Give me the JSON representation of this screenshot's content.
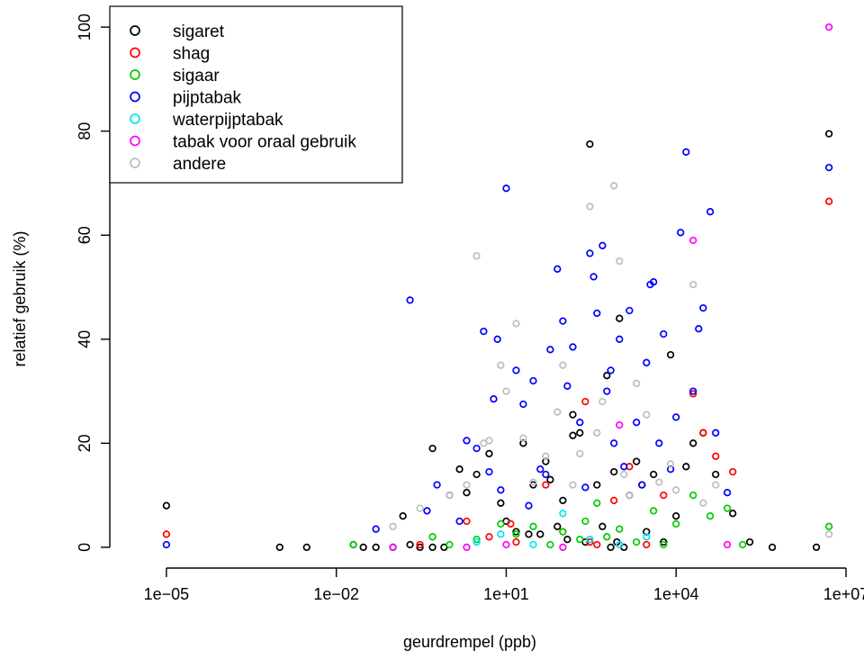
{
  "chart_data": {
    "type": "scatter",
    "title": "",
    "xlabel": "geurdrempel (ppb)",
    "ylabel": "relatief gebruik (%)",
    "x_scale": "log10",
    "xlim": [
      1e-06,
      10000000.0
    ],
    "ylim": [
      -4,
      104
    ],
    "x_ticks": [
      1e-05,
      0.01,
      10,
      10000,
      10000000
    ],
    "x_tick_labels": [
      "1e−05",
      "1e−02",
      "1e+01",
      "1e+04",
      "1e+07"
    ],
    "y_ticks": [
      0,
      20,
      40,
      60,
      80,
      100
    ],
    "y_tick_labels": [
      "0",
      "20",
      "40",
      "60",
      "80",
      "100"
    ],
    "grid": false,
    "legend_position": "top-left",
    "series": [
      {
        "name": "sigaret",
        "color": "#000000",
        "x": [
          1e-05,
          0.001,
          0.003,
          0.02,
          0.03,
          0.05,
          0.1,
          0.2,
          0.15,
          0.3,
          0.5,
          0.5,
          0.8,
          1.5,
          2,
          3,
          5,
          8,
          10,
          15,
          20,
          25,
          30,
          40,
          50,
          60,
          80,
          100,
          120,
          150,
          200,
          300,
          400,
          500,
          600,
          800,
          1000,
          1500,
          2000,
          2500,
          3000,
          4000,
          6000,
          8000,
          10000,
          15000,
          20000,
          30000,
          50000,
          100000,
          200000,
          500000,
          5000000,
          3000000,
          150,
          250,
          700,
          900,
          1200
        ],
        "y": [
          8,
          0,
          0,
          0.5,
          0,
          0,
          0,
          0.5,
          6,
          0,
          19,
          0,
          0,
          15,
          10.5,
          14,
          18,
          8.5,
          5,
          3,
          20,
          2.5,
          12,
          2.5,
          16.5,
          13,
          4,
          9,
          1.5,
          21.5,
          22,
          77.5,
          12,
          4,
          33,
          14.5,
          44,
          10,
          16.5,
          12,
          3,
          14,
          1,
          37,
          6,
          15.5,
          20,
          22,
          14,
          6.5,
          1,
          0,
          79.5,
          0,
          25.5,
          1,
          0,
          1,
          0
        ]
      },
      {
        "name": "shag",
        "color": "#ff0000",
        "x": [
          1e-05,
          0.3,
          2,
          5,
          12,
          50,
          100,
          250,
          300,
          800,
          1500,
          3000,
          6000,
          20000,
          30000,
          50000,
          100000,
          5000000,
          15,
          400
        ],
        "y": [
          2.5,
          0.5,
          5,
          2,
          4.5,
          12,
          3,
          28,
          1,
          9,
          15.5,
          0.5,
          10,
          29.5,
          22,
          17.5,
          14.5,
          66.5,
          1,
          0.5
        ]
      },
      {
        "name": "sigaar",
        "color": "#00cc00",
        "x": [
          0.02,
          0.5,
          1,
          3,
          8,
          15,
          30,
          60,
          100,
          200,
          400,
          600,
          1000,
          2000,
          4000,
          6000,
          10000,
          20000,
          40000,
          80000,
          150000,
          5000000,
          0.1,
          250
        ],
        "y": [
          0.5,
          2,
          0.5,
          1.5,
          4.5,
          2.5,
          4,
          0.5,
          3,
          1.5,
          8.5,
          2,
          3.5,
          1,
          7,
          0.5,
          4.5,
          10,
          6,
          7.5,
          0.5,
          4,
          0,
          5
        ]
      },
      {
        "name": "pijptabak",
        "color": "#0000ff",
        "x": [
          1e-05,
          0.05,
          0.2,
          0.4,
          0.6,
          1,
          1.5,
          2,
          3,
          4,
          5,
          6,
          7,
          8,
          10,
          15,
          20,
          25,
          30,
          40,
          50,
          60,
          80,
          100,
          120,
          150,
          200,
          250,
          300,
          350,
          400,
          500,
          600,
          700,
          800,
          1000,
          1200,
          1500,
          2000,
          2500,
          3000,
          3500,
          4000,
          5000,
          6000,
          8000,
          10000,
          12000,
          15000,
          20000,
          25000,
          30000,
          40000,
          50000,
          80000,
          5000000
        ],
        "y": [
          0.5,
          3.5,
          47.5,
          7,
          12,
          10,
          5,
          20.5,
          19,
          41.5,
          14.5,
          28.5,
          40,
          11,
          69,
          34,
          27.5,
          8,
          32,
          15,
          14,
          38,
          53.5,
          43.5,
          31,
          38.5,
          24,
          11.5,
          56.5,
          52,
          45,
          58,
          30,
          34,
          20,
          40,
          15.5,
          45.5,
          24,
          12,
          35.5,
          50.5,
          51,
          20,
          41,
          15,
          25,
          60.5,
          76,
          30,
          42,
          46,
          64.5,
          22,
          10.5,
          73
        ]
      },
      {
        "name": "waterpijptabak",
        "color": "#00e5ee",
        "x": [
          3,
          8,
          30,
          100,
          300,
          1000,
          3000
        ],
        "y": [
          1,
          2.5,
          0.5,
          6.5,
          1.5,
          0.5,
          2
        ]
      },
      {
        "name": "tabak voor oraal gebruik",
        "color": "#ff00ff",
        "x": [
          0.1,
          2,
          10,
          100,
          1000,
          20000,
          5000000,
          80000
        ],
        "y": [
          0,
          0,
          0.5,
          0,
          23.5,
          59,
          100,
          0.5
        ]
      },
      {
        "name": "andere",
        "color": "#bebebe",
        "x": [
          0.1,
          0.3,
          1,
          2,
          3,
          5,
          8,
          10,
          15,
          20,
          30,
          50,
          80,
          100,
          150,
          200,
          300,
          500,
          800,
          1000,
          1500,
          2000,
          3000,
          5000,
          8000,
          10000,
          20000,
          30000,
          50000,
          5000000,
          4,
          400,
          1200
        ],
        "y": [
          4,
          7.5,
          10,
          12,
          56,
          20.5,
          35,
          30,
          43,
          21,
          12.5,
          17.5,
          26,
          35,
          12,
          18,
          65.5,
          28,
          69.5,
          55,
          10,
          31.5,
          25.5,
          12.5,
          16,
          11,
          50.5,
          8.5,
          12,
          2.5,
          20,
          22,
          14
        ]
      }
    ]
  }
}
